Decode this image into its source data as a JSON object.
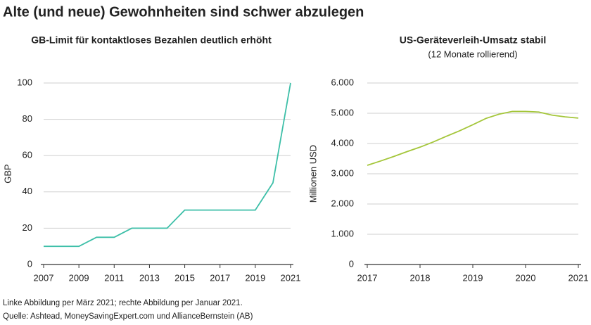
{
  "title": "Alte (und neue) Gewohnheiten sind schwer abzulegen",
  "chart_data": [
    {
      "type": "line",
      "title": "GB-Limit für kontaktloses Bezahlen deutlich erhöht",
      "y_label": "GBP",
      "x": [
        2007,
        2009,
        2010,
        2011,
        2012,
        2014,
        2015,
        2019,
        2020,
        2021
      ],
      "values": [
        10,
        10,
        15,
        15,
        20,
        20,
        30,
        30,
        45,
        100
      ],
      "color": "#3dbfa8",
      "xlim": [
        2007,
        2021
      ],
      "xticks": [
        2007,
        2009,
        2011,
        2013,
        2015,
        2017,
        2019,
        2021
      ],
      "ylim": [
        0,
        100
      ],
      "yticks": [
        0,
        20,
        40,
        60,
        80,
        100
      ],
      "grid": true
    },
    {
      "type": "line",
      "title": "US-Geräteverleih-Umsatz stabil",
      "subtitle": "(12 Monate rollierend)",
      "y_label": "Millionen USD",
      "x": [
        2017,
        2017.25,
        2017.5,
        2017.75,
        2018,
        2018.25,
        2018.5,
        2018.75,
        2019,
        2019.25,
        2019.5,
        2019.75,
        2020,
        2020.25,
        2020.5,
        2020.75,
        2021
      ],
      "values": [
        3280,
        3420,
        3570,
        3730,
        3880,
        4050,
        4240,
        4420,
        4620,
        4830,
        4970,
        5060,
        5060,
        5040,
        4940,
        4880,
        4840
      ],
      "color": "#a4c63a",
      "xlim": [
        2017,
        2021
      ],
      "xticks": [
        2017,
        2018,
        2019,
        2020,
        2021
      ],
      "ylim": [
        0,
        6000
      ],
      "yticks": [
        0,
        {
          "value": 1000,
          "label": "1.000"
        },
        {
          "value": 2000,
          "label": "2.000"
        },
        {
          "value": 3000,
          "label": "3.000"
        },
        {
          "value": 4000,
          "label": "4.000"
        },
        {
          "value": 5000,
          "label": "5.000"
        },
        {
          "value": 6000,
          "label": "6.000"
        }
      ],
      "grid": true
    }
  ],
  "notes": [
    "Linke Abbildung per März 2021; rechte Abbildung per Januar 2021.",
    "Quelle: Ashtead, MoneySavingExpert.com und AllianceBernstein (AB)"
  ]
}
